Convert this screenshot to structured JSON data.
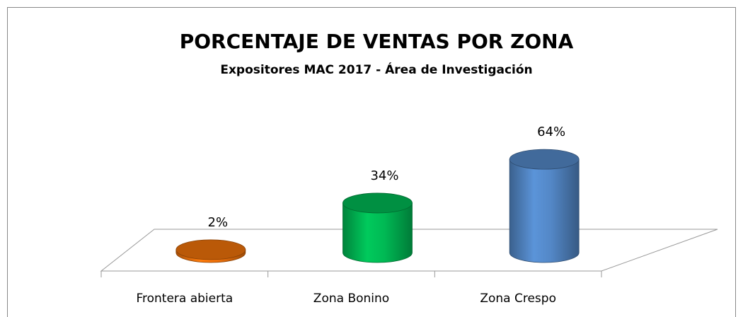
{
  "chart_data": {
    "type": "bar3d",
    "title": "PORCENTAJE DE VENTAS POR ZONA",
    "subtitle": "Expositores MAC 2017 - Área de Investigación",
    "categories": [
      "Frontera abierta",
      "Zona Bonino",
      "Zona Crespo"
    ],
    "values": [
      2,
      34,
      64
    ],
    "value_labels": [
      "2%",
      "34%",
      "64%"
    ],
    "colors": [
      "#e36c0a",
      "#00b050",
      "#4f81bd"
    ]
  }
}
